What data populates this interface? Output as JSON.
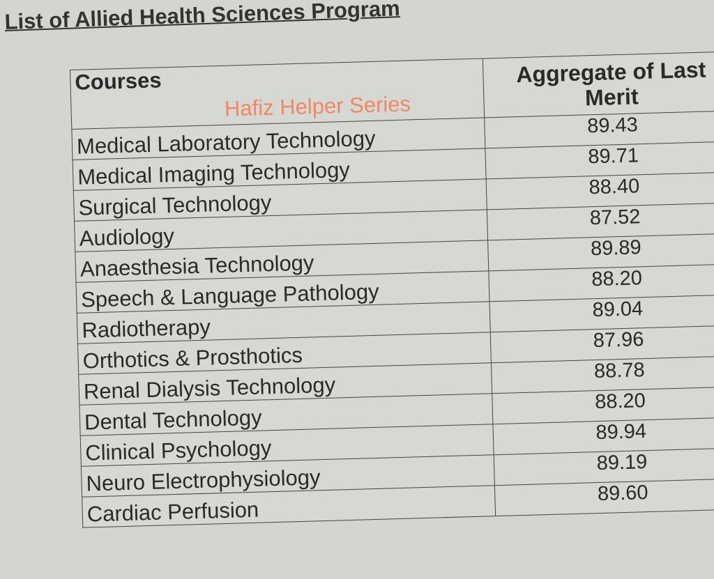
{
  "title": "List of Allied Health Sciences Program",
  "watermark": "Hafiz Helper Series",
  "table": {
    "headers": [
      "Courses",
      "Aggregate of Last Merit"
    ],
    "rows": [
      {
        "course": "Medical Laboratory Technology",
        "merit": "89.43"
      },
      {
        "course": "Medical Imaging Technology",
        "merit": "89.71"
      },
      {
        "course": "Surgical  Technology",
        "merit": "88.40"
      },
      {
        "course": "Audiology",
        "merit": "87.52"
      },
      {
        "course": "Anaesthesia Technology",
        "merit": "89.89"
      },
      {
        "course": "Speech & Language Pathology",
        "merit": "88.20"
      },
      {
        "course": "Radiotherapy",
        "merit": "89.04"
      },
      {
        "course": "Orthotics & Prosthotics",
        "merit": "87.96"
      },
      {
        "course": "Renal Dialysis Technology",
        "merit": "88.78"
      },
      {
        "course": "Dental Technology",
        "merit": "88.20"
      },
      {
        "course": "Clinical Psychology",
        "merit": "89.94"
      },
      {
        "course": "Neuro Electrophysiology",
        "merit": "89.19"
      },
      {
        "course": "Cardiac Perfusion",
        "merit": "89.60"
      }
    ]
  },
  "colors": {
    "watermark": "#f47f52",
    "paper": "#d3d5d0"
  }
}
